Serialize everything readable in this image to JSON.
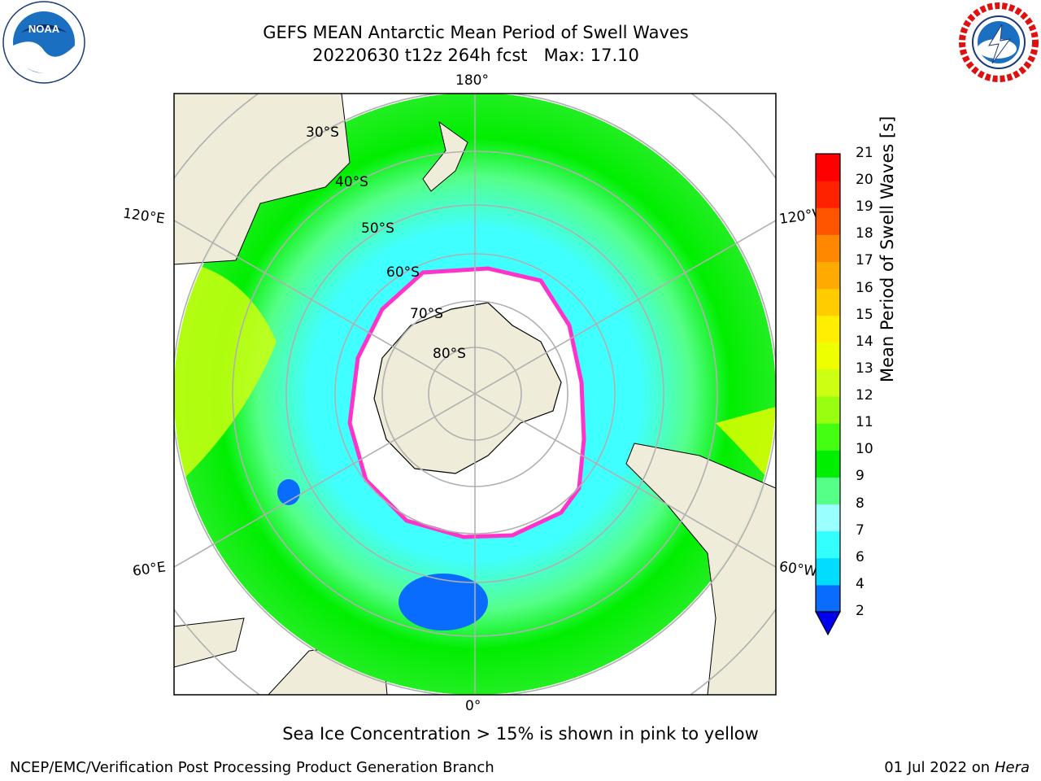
{
  "title": {
    "line1": "GEFS MEAN Antarctic Mean Period of Swell Waves",
    "line2": "20220630 t12z 264h fcst   Max: 17.10"
  },
  "map": {
    "lon_labels": {
      "top": "180°",
      "bottom": "0°",
      "upper_left": "120°E",
      "upper_right": "120°W",
      "lower_left": "60°E",
      "lower_right": "60°W"
    },
    "lat_labels": [
      "30°S",
      "40°S",
      "50°S",
      "60°S",
      "70°S",
      "80°S"
    ],
    "colors": {
      "land": "#efedd9",
      "ocean_lo": "#1e90ff",
      "ocean_mid": "#40ffff",
      "ocean_hi": "#00ee00",
      "ice_edge": "#ff33cc",
      "grid": "#b0b0b0"
    }
  },
  "colorbar": {
    "label": "Mean Period of Swell Waves [s]",
    "ticks": [
      "2",
      "4",
      "6",
      "7",
      "8",
      "9",
      "10",
      "11",
      "12",
      "13",
      "14",
      "15",
      "16",
      "17",
      "18",
      "19",
      "20",
      "21"
    ],
    "colors": [
      "#0000ee",
      "#0a6cff",
      "#00ddff",
      "#33ffff",
      "#99ffff",
      "#55ff88",
      "#00ee00",
      "#44ff11",
      "#99ff11",
      "#ccff11",
      "#eeff00",
      "#ffee00",
      "#ffcc00",
      "#ffaa00",
      "#ff8800",
      "#ff5500",
      "#ff2200",
      "#ff0000"
    ]
  },
  "caption": "Sea Ice Concentration > 15% is shown in pink to yellow",
  "footer": {
    "left": "NCEP/EMC/Verification Post Processing Product Generation Branch",
    "right_prefix": "01 Jul 2022 on ",
    "right_host": "Hera"
  },
  "logos": {
    "noaa_text": "NOAA",
    "nws_text": "NATIONAL WEATHER SERVICE"
  }
}
